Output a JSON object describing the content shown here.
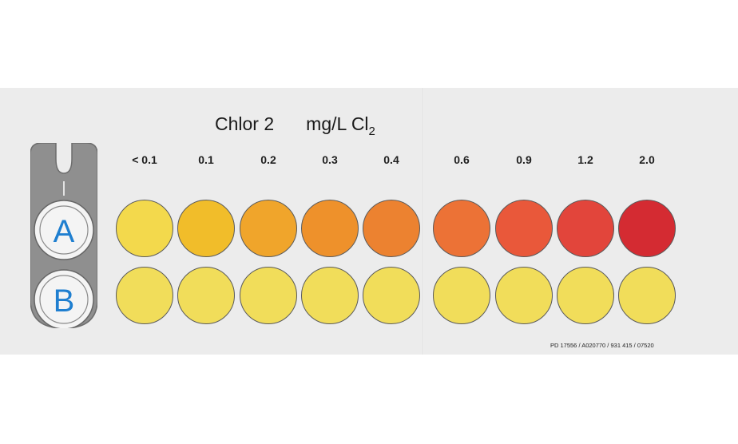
{
  "title": {
    "name": "Chlor 2",
    "unit_prefix": "mg/L Cl",
    "unit_sub": "2"
  },
  "holder": {
    "row_a": "A",
    "row_b": "B"
  },
  "levels": [
    "< 0.1",
    "0.1",
    "0.2",
    "0.3",
    "0.4",
    "0.6",
    "0.9",
    "1.2",
    "2.0"
  ],
  "row_a_colors": [
    "#f3d94c",
    "#f1bd2a",
    "#f0a52b",
    "#ee912b",
    "#ec8230",
    "#ec7236",
    "#e9583a",
    "#e2453b",
    "#d42b32"
  ],
  "row_b_colors": [
    "#f1dd5a",
    "#f1dd5a",
    "#f1dd5a",
    "#f1dd5a",
    "#f1dd5a",
    "#f1dd5a",
    "#f1dd5a",
    "#f1dd5a",
    "#f1dd5a"
  ],
  "footnote": "PD 17556 / A020770 / 931 415 / 07520"
}
